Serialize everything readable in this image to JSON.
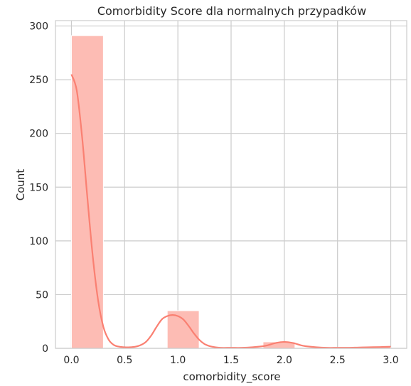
{
  "chart_data": {
    "type": "histogram",
    "title": "Comorbidity Score dla normalnych przypadków",
    "xlabel": "comorbidity_score",
    "ylabel": "Count",
    "xlim": [
      -0.15,
      3.15
    ],
    "ylim": [
      0,
      305
    ],
    "xticks": [
      "0.0",
      "0.5",
      "1.0",
      "1.5",
      "2.0",
      "2.5",
      "3.0"
    ],
    "yticks": [
      "0",
      "50",
      "100",
      "150",
      "200",
      "250",
      "300"
    ],
    "grid": true,
    "bar_color": "#fdbcb4",
    "kde_color": "#fa8072",
    "bins": [
      {
        "x0": 0.0,
        "x1": 0.3,
        "count": 291
      },
      {
        "x0": 0.3,
        "x1": 0.6,
        "count": 0
      },
      {
        "x0": 0.6,
        "x1": 0.9,
        "count": 0
      },
      {
        "x0": 0.9,
        "x1": 1.2,
        "count": 35
      },
      {
        "x0": 1.2,
        "x1": 1.5,
        "count": 0
      },
      {
        "x0": 1.5,
        "x1": 1.8,
        "count": 0
      },
      {
        "x0": 1.8,
        "x1": 2.1,
        "count": 6
      },
      {
        "x0": 2.1,
        "x1": 2.4,
        "count": 0
      },
      {
        "x0": 2.4,
        "x1": 2.7,
        "count": 0
      },
      {
        "x0": 2.7,
        "x1": 3.0,
        "count": 1
      }
    ],
    "kde": {
      "x": [
        0.0,
        0.05,
        0.1,
        0.15,
        0.2,
        0.25,
        0.3,
        0.35,
        0.4,
        0.45,
        0.5,
        0.55,
        0.6,
        0.65,
        0.7,
        0.75,
        0.8,
        0.85,
        0.9,
        0.95,
        1.0,
        1.05,
        1.1,
        1.15,
        1.2,
        1.25,
        1.3,
        1.35,
        1.4,
        1.5,
        1.6,
        1.7,
        1.8,
        1.85,
        1.9,
        1.95,
        2.0,
        2.05,
        2.1,
        2.15,
        2.2,
        2.3,
        2.4,
        2.5,
        2.6,
        2.7,
        2.8,
        2.9,
        3.0
      ],
      "y": [
        255,
        240,
        197,
        140,
        86,
        45,
        20,
        8,
        3,
        1.5,
        1,
        1,
        1.5,
        3,
        6,
        12,
        20,
        27,
        30,
        31,
        30,
        27,
        21,
        14,
        8,
        4,
        2,
        1,
        0.5,
        0.5,
        0.5,
        1,
        2,
        3,
        4.5,
        5.5,
        6,
        5.5,
        4.5,
        3,
        2,
        1,
        0.5,
        0.5,
        0.5,
        0.8,
        1,
        1.2,
        1.5
      ]
    }
  }
}
